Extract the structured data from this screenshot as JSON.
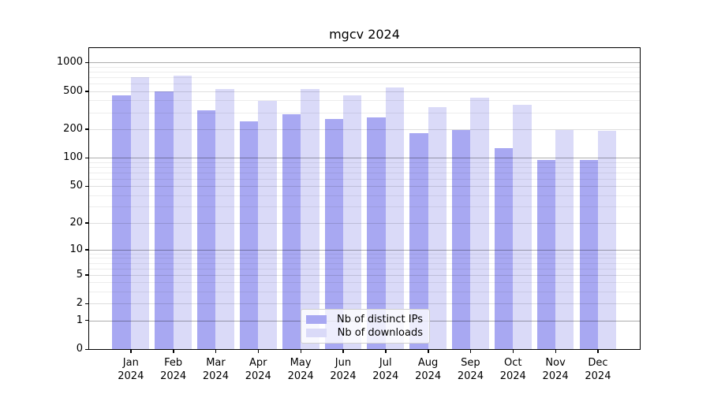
{
  "chart_data": {
    "type": "bar",
    "title": "mgcv 2024",
    "categories": [
      "Jan",
      "Feb",
      "Mar",
      "Apr",
      "May",
      "Jun",
      "Jul",
      "Aug",
      "Sep",
      "Oct",
      "Nov",
      "Dec"
    ],
    "year_label": "2024",
    "series": [
      {
        "name": "Nb of distinct IPs",
        "color": "#a8a8f2",
        "values": [
          455,
          495,
          316,
          243,
          284,
          258,
          267,
          180,
          197,
          126,
          94,
          94
        ]
      },
      {
        "name": "Nb of downloads",
        "color": "#dadaf8",
        "values": [
          703,
          733,
          524,
          399,
          525,
          451,
          545,
          343,
          424,
          358,
          194,
          192
        ]
      }
    ],
    "y_axis": {
      "scale": "log1p",
      "tick_values": [
        0,
        1,
        2,
        5,
        10,
        20,
        50,
        100,
        200,
        500,
        1000
      ],
      "range": [
        0,
        1430
      ],
      "grid": "on"
    },
    "grid_lines": {
      "decade_lines": [
        1,
        10,
        100,
        1000
      ],
      "tick_lines": [
        2,
        5,
        20,
        50,
        200,
        500
      ],
      "minor_lines": [
        3,
        4,
        6,
        7,
        8,
        9,
        30,
        40,
        60,
        70,
        80,
        90,
        300,
        400,
        600,
        700,
        800,
        900
      ]
    },
    "legend": {
      "position": "lower center",
      "entries": [
        "Nb of distinct IPs",
        "Nb of downloads"
      ]
    }
  }
}
